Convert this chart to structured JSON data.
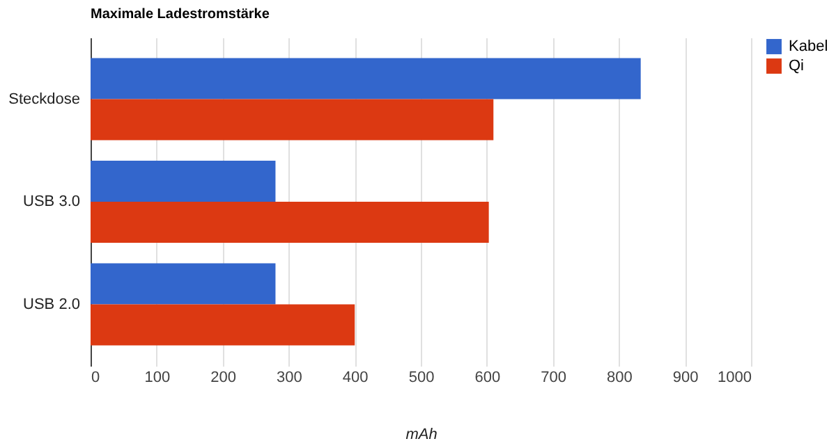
{
  "chart_data": {
    "type": "bar",
    "orientation": "horizontal",
    "title": "Maximale Ladestromstärke",
    "xlabel": "mAh",
    "categories": [
      "Steckdose",
      "USB 3.0",
      "USB 2.0"
    ],
    "series": [
      {
        "name": "Kabel",
        "color": "#3366cc",
        "values": [
          833,
          280,
          280
        ]
      },
      {
        "name": "Qi",
        "color": "#dc3912",
        "values": [
          610,
          603,
          400
        ]
      }
    ],
    "xlim": [
      0,
      1000
    ],
    "xticks": [
      0,
      100,
      200,
      300,
      400,
      500,
      600,
      700,
      800,
      900,
      1000
    ],
    "grid": "x",
    "legend": "top right"
  }
}
